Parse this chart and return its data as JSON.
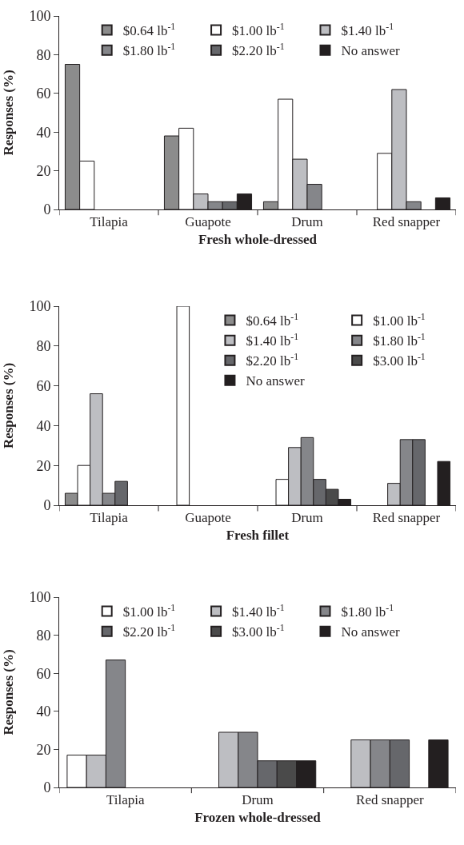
{
  "chart_data": [
    {
      "type": "bar",
      "xlabel": "Fresh whole-dressed",
      "ylabel": "Responses (%)",
      "categories": [
        "Tilapia",
        "Guapote",
        "Drum",
        "Red snapper"
      ],
      "ylim": [
        0,
        100
      ],
      "yticks": [
        0,
        20,
        40,
        60,
        80,
        100
      ],
      "legend": "top",
      "grid": false,
      "series": [
        {
          "name": "$0.64 lb$^{-1}$",
          "color": "#8c8c8c",
          "values": [
            75,
            38,
            4,
            0
          ]
        },
        {
          "name": "$1.00 lb$^{-1}$",
          "color": "#ffffff",
          "values": [
            25,
            42,
            57,
            29
          ]
        },
        {
          "name": "$1.40 lb$^{-1}$",
          "color": "#bdbec2",
          "values": [
            0,
            8,
            26,
            62
          ]
        },
        {
          "name": "$1.80 lb$^{-1}$",
          "color": "#85868a",
          "values": [
            0,
            4,
            13,
            4
          ]
        },
        {
          "name": "$2.20 lb$^{-1}$",
          "color": "#66676b",
          "values": [
            0,
            4,
            0,
            0
          ]
        },
        {
          "name": "No answer",
          "color": "#231f20",
          "values": [
            0,
            8,
            0,
            6
          ]
        }
      ]
    },
    {
      "type": "bar",
      "xlabel": "Fresh fillet",
      "ylabel": "Responses (%)",
      "categories": [
        "Tilapia",
        "Guapote",
        "Drum",
        "Red snapper"
      ],
      "ylim": [
        0,
        100
      ],
      "yticks": [
        0,
        20,
        40,
        60,
        80,
        100
      ],
      "legend": "top right",
      "grid": false,
      "series": [
        {
          "name": "$0.64 lb$^{-1}$",
          "color": "#8c8c8c",
          "values": [
            6,
            0,
            0,
            0
          ]
        },
        {
          "name": "$1.00 lb$^{-1}$",
          "color": "#ffffff",
          "values": [
            20,
            100,
            13,
            0
          ]
        },
        {
          "name": "$1.40 lb$^{-1}$",
          "color": "#bdbec2",
          "values": [
            56,
            0,
            29,
            11
          ]
        },
        {
          "name": "$1.80 lb$^{-1}$",
          "color": "#85868a",
          "values": [
            6,
            0,
            34,
            33
          ]
        },
        {
          "name": "$2.20 lb$^{-1}$",
          "color": "#66676b",
          "values": [
            12,
            0,
            13,
            33
          ]
        },
        {
          "name": "$3.00 lb$^{-1}$",
          "color": "#4a4a4a",
          "values": [
            0,
            0,
            8,
            0
          ]
        },
        {
          "name": "No answer",
          "color": "#231f20",
          "values": [
            0,
            0,
            3,
            22
          ]
        }
      ]
    },
    {
      "type": "bar",
      "xlabel": "Frozen whole-dressed",
      "ylabel": "Responses (%)",
      "categories": [
        "Tilapia",
        "Drum",
        "Red snapper"
      ],
      "ylim": [
        0,
        100
      ],
      "yticks": [
        0,
        20,
        40,
        60,
        80,
        100
      ],
      "legend": "top",
      "grid": false,
      "series": [
        {
          "name": "$1.00 lb$^{-1}$",
          "color": "#ffffff",
          "values": [
            17,
            0,
            0
          ]
        },
        {
          "name": "$1.40 lb$^{-1}$",
          "color": "#bdbec2",
          "values": [
            17,
            29,
            25
          ]
        },
        {
          "name": "$1.80 lb$^{-1}$",
          "color": "#85868a",
          "values": [
            67,
            29,
            25
          ]
        },
        {
          "name": "$2.20 lb$^{-1}$",
          "color": "#66676b",
          "values": [
            0,
            14,
            25
          ]
        },
        {
          "name": "$3.00 lb$^{-1}$",
          "color": "#4a4a4a",
          "values": [
            0,
            14,
            0
          ]
        },
        {
          "name": "No answer",
          "color": "#231f20",
          "values": [
            0,
            14,
            25
          ]
        }
      ]
    }
  ]
}
